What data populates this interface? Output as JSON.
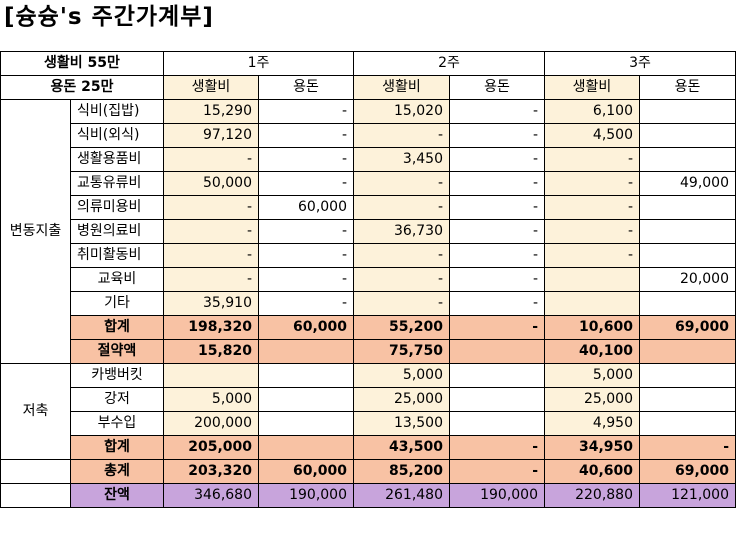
{
  "title": "[슝슝's 주간가계부]",
  "header": {
    "budget_line1": "생활비 55만",
    "budget_line2": "용돈 25만",
    "weeks": [
      "1주",
      "2주",
      "3주"
    ],
    "col_living": "생활비",
    "col_allowance": "용돈"
  },
  "sections": {
    "variable": "변동지출",
    "savings": "저축"
  },
  "variable_rows": [
    {
      "label": "식비(집밥)",
      "v": [
        "15,290",
        "-",
        "15,020",
        "-",
        "6,100",
        ""
      ]
    },
    {
      "label": "식비(외식)",
      "v": [
        "97,120",
        "-",
        "-",
        "-",
        "4,500",
        ""
      ]
    },
    {
      "label": "생활용품비",
      "v": [
        "-",
        "-",
        "3,450",
        "-",
        "-",
        ""
      ]
    },
    {
      "label": "교통유류비",
      "v": [
        "50,000",
        "-",
        "-",
        "-",
        "-",
        "49,000"
      ]
    },
    {
      "label": "의류미용비",
      "v": [
        "-",
        "60,000",
        "-",
        "-",
        "-",
        ""
      ]
    },
    {
      "label": "병원의료비",
      "v": [
        "-",
        "-",
        "36,730",
        "-",
        "-",
        ""
      ]
    },
    {
      "label": "취미활동비",
      "v": [
        "-",
        "-",
        "-",
        "-",
        "-",
        ""
      ]
    },
    {
      "label": "교육비",
      "v": [
        "-",
        "-",
        "-",
        "-",
        "",
        "20,000"
      ]
    },
    {
      "label": "기타",
      "v": [
        "35,910",
        "-",
        "-",
        "-",
        "",
        ""
      ]
    }
  ],
  "variable_total": {
    "label": "합계",
    "v": [
      "198,320",
      "60,000",
      "55,200",
      "-",
      "10,600",
      "69,000"
    ]
  },
  "savings_amount": {
    "label": "절약액",
    "v": [
      "15,820",
      "",
      "75,750",
      "",
      "40,100",
      ""
    ]
  },
  "savings_rows": [
    {
      "label": "카뱅버킷",
      "v": [
        "",
        "",
        "5,000",
        "",
        "5,000",
        ""
      ]
    },
    {
      "label": "강저",
      "v": [
        "5,000",
        "",
        "25,000",
        "",
        "25,000",
        ""
      ]
    },
    {
      "label": "부수입",
      "v": [
        "200,000",
        "",
        "13,500",
        "",
        "4,950",
        ""
      ]
    }
  ],
  "savings_total": {
    "label": "합계",
    "v": [
      "205,000",
      "",
      "43,500",
      "-",
      "34,950",
      "-"
    ]
  },
  "grand_total": {
    "label": "총계",
    "v": [
      "203,320",
      "60,000",
      "85,200",
      "-",
      "40,600",
      "69,000"
    ]
  },
  "balance": {
    "label": "잔액",
    "v": [
      "346,680",
      "190,000",
      "261,480",
      "190,000",
      "220,880",
      "121,000"
    ]
  },
  "colors": {
    "beige": "#fdf2da",
    "orange": "#f8c2a4",
    "purple": "#c8a4dc"
  }
}
